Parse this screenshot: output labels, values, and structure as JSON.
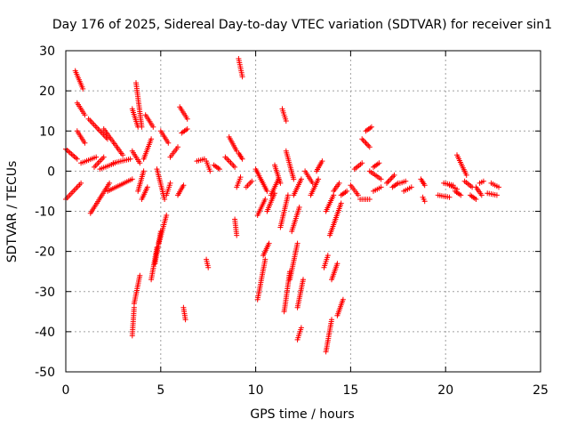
{
  "chart_data": {
    "type": "scatter",
    "title": "Day 176 of 2025, Sidereal Day-to-day VTEC variation (SDTVAR) for receiver sin1",
    "xlabel": "GPS time / hours",
    "ylabel": "SDTVAR / TECUs",
    "xlim": [
      0,
      25
    ],
    "ylim": [
      -50,
      30
    ],
    "xticks": [
      0,
      5,
      10,
      15,
      20,
      25
    ],
    "yticks": [
      -50,
      -40,
      -30,
      -20,
      -10,
      0,
      10,
      20,
      30
    ],
    "grid": true,
    "marker": "+",
    "color": "#ff0000",
    "series": [
      {
        "name": "SDTVAR",
        "segments": [
          [
            0.0,
            5.5,
            0.6,
            3.0
          ],
          [
            0.0,
            -7.0,
            0.8,
            -3.0
          ],
          [
            0.5,
            25.0,
            0.9,
            20.5
          ],
          [
            0.6,
            17.0,
            1.0,
            14.0
          ],
          [
            0.6,
            10.0,
            1.0,
            7.0
          ],
          [
            0.8,
            2.0,
            1.6,
            3.5
          ],
          [
            1.2,
            13.0,
            2.2,
            8.0
          ],
          [
            1.3,
            -10.5,
            2.3,
            -3.0
          ],
          [
            1.5,
            1.0,
            2.0,
            3.5
          ],
          [
            1.8,
            0.5,
            2.6,
            2.0
          ],
          [
            2.0,
            10.5,
            3.0,
            4.0
          ],
          [
            2.2,
            -5.0,
            3.5,
            -2.0
          ],
          [
            2.5,
            2.0,
            3.4,
            3.0
          ],
          [
            3.5,
            15.5,
            3.8,
            11.0
          ],
          [
            3.5,
            5.0,
            3.9,
            2.0
          ],
          [
            3.5,
            -41.0,
            3.6,
            -34.0
          ],
          [
            3.6,
            -33.0,
            3.9,
            -26.0
          ],
          [
            3.7,
            22.0,
            4.0,
            11.0
          ],
          [
            3.8,
            -5.0,
            4.1,
            0.0
          ],
          [
            4.0,
            -7.0,
            4.3,
            -4.0
          ],
          [
            4.1,
            3.0,
            4.5,
            8.0
          ],
          [
            4.2,
            14.0,
            4.6,
            11.0
          ],
          [
            4.5,
            -27.0,
            4.8,
            -19.0
          ],
          [
            4.7,
            -23.0,
            5.0,
            -15.0
          ],
          [
            4.9,
            -18.0,
            5.3,
            -11.0
          ],
          [
            4.8,
            0.5,
            5.2,
            -7.0
          ],
          [
            5.0,
            10.0,
            5.4,
            7.0
          ],
          [
            5.3,
            -6.0,
            5.5,
            -3.0
          ],
          [
            5.5,
            3.5,
            5.9,
            6.0
          ],
          [
            5.9,
            -6.0,
            6.2,
            -3.5
          ],
          [
            6.0,
            16.0,
            6.4,
            13.0
          ],
          [
            6.1,
            9.5,
            6.4,
            10.5
          ],
          [
            6.2,
            -34.0,
            6.3,
            -37.0
          ],
          [
            6.9,
            2.5,
            7.3,
            3.0
          ],
          [
            7.4,
            2.5,
            7.6,
            0.0
          ],
          [
            7.4,
            -22.0,
            7.5,
            -24.0
          ],
          [
            7.8,
            1.5,
            8.1,
            0.5
          ],
          [
            8.4,
            3.5,
            8.9,
            1.0
          ],
          [
            8.6,
            8.5,
            9.0,
            5.0
          ],
          [
            8.9,
            -12.0,
            9.0,
            -16.0
          ],
          [
            9.0,
            -4.0,
            9.2,
            -1.5
          ],
          [
            9.1,
            28.0,
            9.3,
            23.5
          ],
          [
            9.1,
            4.5,
            9.3,
            3.0
          ],
          [
            9.5,
            -4.0,
            9.8,
            -2.5
          ],
          [
            10.0,
            0.5,
            10.6,
            -5.0
          ],
          [
            10.1,
            -32.0,
            10.5,
            -22.0
          ],
          [
            10.1,
            -11.0,
            10.5,
            -7.0
          ],
          [
            10.4,
            -21.0,
            10.7,
            -18.0
          ],
          [
            10.6,
            -10.0,
            11.0,
            -5.5
          ],
          [
            10.8,
            -6.0,
            11.2,
            -2.0
          ],
          [
            11.0,
            1.5,
            11.3,
            -3.0
          ],
          [
            11.3,
            -14.0,
            11.7,
            -6.0
          ],
          [
            11.5,
            -35.0,
            11.8,
            -25.0
          ],
          [
            11.4,
            15.5,
            11.6,
            12.5
          ],
          [
            11.6,
            5.0,
            12.0,
            -2.0
          ],
          [
            11.8,
            -27.0,
            12.2,
            -18.0
          ],
          [
            11.9,
            -15.0,
            12.3,
            -9.0
          ],
          [
            12.0,
            -6.0,
            12.4,
            -2.0
          ],
          [
            12.2,
            -34.0,
            12.5,
            -27.0
          ],
          [
            12.2,
            -42.0,
            12.4,
            -39.0
          ],
          [
            12.6,
            0.0,
            13.0,
            -3.0
          ],
          [
            12.9,
            -6.0,
            13.3,
            -2.0
          ],
          [
            13.2,
            0.0,
            13.5,
            2.5
          ],
          [
            13.6,
            -24.0,
            13.8,
            -21.0
          ],
          [
            13.7,
            -10.0,
            14.1,
            -6.0
          ],
          [
            13.7,
            -45.0,
            14.0,
            -37.0
          ],
          [
            13.9,
            -16.0,
            14.2,
            -12.0
          ],
          [
            14.0,
            -27.0,
            14.3,
            -23.0
          ],
          [
            14.1,
            -5.0,
            14.4,
            -3.0
          ],
          [
            14.2,
            -12.0,
            14.5,
            -8.0
          ],
          [
            14.3,
            -36.0,
            14.6,
            -32.0
          ],
          [
            14.5,
            -6.0,
            14.8,
            -5.0
          ],
          [
            15.0,
            -3.5,
            15.4,
            -6.0
          ],
          [
            15.2,
            0.5,
            15.6,
            2.0
          ],
          [
            15.5,
            -7.0,
            16.0,
            -7.0
          ],
          [
            15.6,
            8.0,
            16.0,
            6.0
          ],
          [
            15.8,
            10.0,
            16.1,
            11.0
          ],
          [
            16.0,
            0.0,
            16.6,
            -2.0
          ],
          [
            16.2,
            1.0,
            16.5,
            2.0
          ],
          [
            16.2,
            -5.0,
            16.6,
            -4.0
          ],
          [
            16.9,
            -3.0,
            17.3,
            -1.0
          ],
          [
            17.2,
            -4.0,
            17.5,
            -3.0
          ],
          [
            17.6,
            -3.0,
            17.9,
            -2.5
          ],
          [
            17.8,
            -5.0,
            18.2,
            -4.0
          ],
          [
            18.7,
            -2.0,
            18.9,
            -3.5
          ],
          [
            18.8,
            -6.5,
            18.9,
            -7.5
          ],
          [
            19.6,
            -6.0,
            20.2,
            -6.5
          ],
          [
            19.9,
            -3.0,
            20.4,
            -3.5
          ],
          [
            20.2,
            -3.5,
            20.6,
            -4.5
          ],
          [
            20.5,
            -5.0,
            20.8,
            -6.0
          ],
          [
            20.6,
            4.0,
            21.1,
            -1.0
          ],
          [
            21.0,
            -2.5,
            21.4,
            -4.0
          ],
          [
            21.3,
            -6.0,
            21.6,
            -7.0
          ],
          [
            21.6,
            -4.0,
            21.9,
            -6.0
          ],
          [
            21.8,
            -3.0,
            22.0,
            -2.5
          ],
          [
            22.2,
            -5.5,
            22.7,
            -6.0
          ],
          [
            22.4,
            -3.0,
            22.8,
            -4.0
          ]
        ]
      }
    ]
  }
}
